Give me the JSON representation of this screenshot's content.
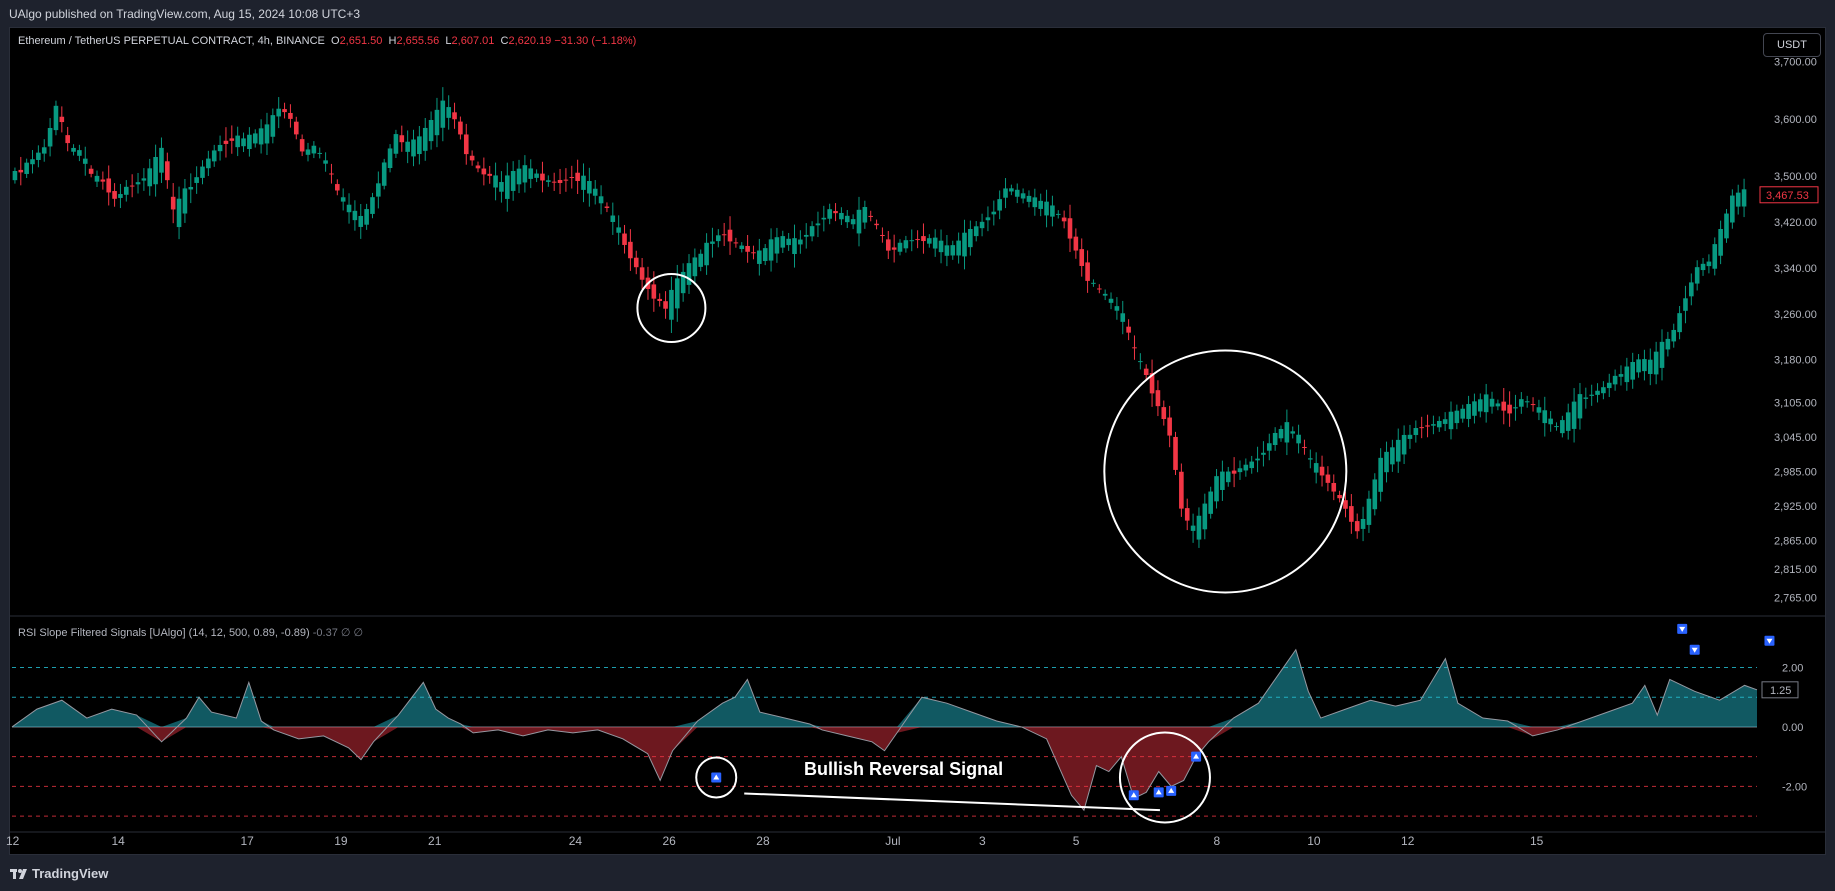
{
  "header": {
    "published": "UAlgo published on TradingView.com, Aug 15, 2024 10:08 UTC+3"
  },
  "main_legend": {
    "symbol": "Ethereum / TetherUS PERPETUAL CONTRACT, 4h, BINANCE",
    "o_label": "O",
    "o_value": "2,651.50",
    "h_label": "H",
    "h_value": "2,655.56",
    "l_label": "L",
    "l_value": "2,607.01",
    "c_label": "C",
    "c_value": "2,620.19",
    "change": "−31.30 (−1.18%)"
  },
  "currency_button": "USDT",
  "indicator_legend": {
    "name": "RSI Slope Filtered Signals [UAlgo] (14, 12, 500, 0.89, -0.89)",
    "value": "-0.37",
    "extra": "∅ ∅"
  },
  "annotation": {
    "text": "Bullish Reversal Signal"
  },
  "footer": {
    "logo_text": "TradingView",
    "logo_icon": "tradingview-logo-icon"
  },
  "colors": {
    "up": "#089981",
    "down": "#f23645",
    "background": "#000000",
    "signal": "#2962ff",
    "accent_teal": "#26c6da"
  },
  "chart_data": [
    {
      "type": "candlestick",
      "title": "",
      "ylim": [
        2740,
        3720
      ],
      "y_ticks": [
        "3,700.00",
        "3,600.00",
        "3,500.00",
        "3,420.00",
        "3,340.00",
        "3,260.00",
        "3,180.00",
        "3,105.00",
        "3,045.00",
        "2,985.00",
        "2,925.00",
        "2,865.00",
        "2,815.00",
        "2,765.00"
      ],
      "last_price_label": "3,467.53",
      "x_ticks": [
        "12",
        "14",
        "17",
        "19",
        "21",
        "24",
        "26",
        "28",
        "Jul",
        "3",
        "5",
        "8",
        "10",
        "12",
        "15"
      ],
      "close_path": [
        [
          0,
          3500
        ],
        [
          2,
          3510
        ],
        [
          4,
          3530
        ],
        [
          6,
          3550
        ],
        [
          8,
          3620
        ],
        [
          10,
          3550
        ],
        [
          12,
          3540
        ],
        [
          14,
          3500
        ],
        [
          16,
          3490
        ],
        [
          18,
          3460
        ],
        [
          20,
          3480
        ],
        [
          22,
          3490
        ],
        [
          24,
          3505
        ],
        [
          26,
          3540
        ],
        [
          28,
          3430
        ],
        [
          30,
          3470
        ],
        [
          32,
          3500
        ],
        [
          34,
          3530
        ],
        [
          36,
          3555
        ],
        [
          38,
          3565
        ],
        [
          40,
          3560
        ],
        [
          42,
          3570
        ],
        [
          44,
          3580
        ],
        [
          46,
          3620
        ],
        [
          48,
          3600
        ],
        [
          50,
          3540
        ],
        [
          52,
          3550
        ],
        [
          54,
          3520
        ],
        [
          56,
          3470
        ],
        [
          58,
          3440
        ],
        [
          60,
          3420
        ],
        [
          62,
          3460
        ],
        [
          64,
          3520
        ],
        [
          66,
          3570
        ],
        [
          68,
          3550
        ],
        [
          70,
          3560
        ],
        [
          72,
          3590
        ],
        [
          74,
          3620
        ],
        [
          76,
          3600
        ],
        [
          78,
          3540
        ],
        [
          80,
          3510
        ],
        [
          82,
          3500
        ],
        [
          84,
          3480
        ],
        [
          86,
          3500
        ],
        [
          88,
          3510
        ],
        [
          90,
          3500
        ],
        [
          92,
          3490
        ],
        [
          94,
          3490
        ],
        [
          96,
          3500
        ],
        [
          98,
          3490
        ],
        [
          100,
          3470
        ],
        [
          102,
          3440
        ],
        [
          104,
          3400
        ],
        [
          106,
          3360
        ],
        [
          108,
          3320
        ],
        [
          110,
          3290
        ],
        [
          112,
          3270
        ],
        [
          114,
          3310
        ],
        [
          116,
          3340
        ],
        [
          118,
          3360
        ],
        [
          120,
          3390
        ],
        [
          122,
          3400
        ],
        [
          124,
          3380
        ],
        [
          126,
          3370
        ],
        [
          128,
          3360
        ],
        [
          130,
          3380
        ],
        [
          132,
          3390
        ],
        [
          134,
          3380
        ],
        [
          136,
          3400
        ],
        [
          138,
          3420
        ],
        [
          140,
          3440
        ],
        [
          142,
          3430
        ],
        [
          144,
          3420
        ],
        [
          146,
          3440
        ],
        [
          148,
          3410
        ],
        [
          150,
          3370
        ],
        [
          152,
          3380
        ],
        [
          154,
          3390
        ],
        [
          156,
          3390
        ],
        [
          158,
          3385
        ],
        [
          160,
          3370
        ],
        [
          162,
          3380
        ],
        [
          164,
          3400
        ],
        [
          166,
          3420
        ],
        [
          168,
          3440
        ],
        [
          170,
          3480
        ],
        [
          172,
          3470
        ],
        [
          174,
          3460
        ],
        [
          176,
          3450
        ],
        [
          178,
          3440
        ],
        [
          180,
          3420
        ],
        [
          182,
          3370
        ],
        [
          184,
          3320
        ],
        [
          186,
          3300
        ],
        [
          188,
          3280
        ],
        [
          190,
          3250
        ],
        [
          192,
          3190
        ],
        [
          194,
          3150
        ],
        [
          196,
          3100
        ],
        [
          198,
          3050
        ],
        [
          200,
          2920
        ],
        [
          202,
          2880
        ],
        [
          204,
          2920
        ],
        [
          206,
          2970
        ],
        [
          208,
          2980
        ],
        [
          210,
          2990
        ],
        [
          212,
          3000
        ],
        [
          214,
          3020
        ],
        [
          216,
          3050
        ],
        [
          218,
          3060
        ],
        [
          220,
          3040
        ],
        [
          222,
          3000
        ],
        [
          224,
          2980
        ],
        [
          226,
          2950
        ],
        [
          228,
          2920
        ],
        [
          230,
          2880
        ],
        [
          232,
          2930
        ],
        [
          234,
          3000
        ],
        [
          236,
          3020
        ],
        [
          238,
          3040
        ],
        [
          240,
          3060
        ],
        [
          242,
          3065
        ],
        [
          244,
          3070
        ],
        [
          246,
          3080
        ],
        [
          248,
          3090
        ],
        [
          250,
          3100
        ],
        [
          252,
          3110
        ],
        [
          254,
          3100
        ],
        [
          256,
          3090
        ],
        [
          258,
          3110
        ],
        [
          260,
          3100
        ],
        [
          262,
          3080
        ],
        [
          264,
          3060
        ],
        [
          266,
          3080
        ],
        [
          268,
          3110
        ],
        [
          270,
          3120
        ],
        [
          272,
          3130
        ],
        [
          274,
          3150
        ],
        [
          276,
          3160
        ],
        [
          278,
          3175
        ],
        [
          280,
          3170
        ],
        [
          282,
          3200
        ],
        [
          284,
          3230
        ],
        [
          286,
          3290
        ],
        [
          288,
          3340
        ],
        [
          290,
          3350
        ],
        [
          292,
          3400
        ],
        [
          294,
          3460
        ],
        [
          296,
          3467.53
        ]
      ]
    },
    {
      "type": "area",
      "title": "",
      "ylim": [
        -3.3,
        3.6
      ],
      "y_ticks": [
        "2.00",
        "0.00",
        "-2.00"
      ],
      "last_value_label": "1.25",
      "levels": [
        2.0,
        1.0,
        -1.0,
        -2.0,
        -3.0
      ],
      "values": [
        [
          0,
          0.0
        ],
        [
          4,
          0.6
        ],
        [
          8,
          0.9
        ],
        [
          12,
          0.3
        ],
        [
          16,
          0.6
        ],
        [
          20,
          0.4
        ],
        [
          24,
          -0.5
        ],
        [
          28,
          0.3
        ],
        [
          30,
          1.0
        ],
        [
          32,
          0.5
        ],
        [
          36,
          0.3
        ],
        [
          38,
          1.5
        ],
        [
          40,
          0.2
        ],
        [
          42,
          -0.1
        ],
        [
          46,
          -0.4
        ],
        [
          50,
          -0.3
        ],
        [
          54,
          -0.7
        ],
        [
          56,
          -1.1
        ],
        [
          58,
          -0.5
        ],
        [
          62,
          0.4
        ],
        [
          66,
          1.5
        ],
        [
          68,
          0.6
        ],
        [
          70,
          0.3
        ],
        [
          72,
          0.1
        ],
        [
          74,
          -0.2
        ],
        [
          78,
          -0.1
        ],
        [
          82,
          -0.3
        ],
        [
          86,
          -0.1
        ],
        [
          90,
          -0.2
        ],
        [
          94,
          -0.1
        ],
        [
          98,
          -0.4
        ],
        [
          102,
          -0.9
        ],
        [
          104,
          -1.8
        ],
        [
          106,
          -0.8
        ],
        [
          110,
          0.2
        ],
        [
          114,
          0.8
        ],
        [
          116,
          1.0
        ],
        [
          118,
          1.6
        ],
        [
          120,
          0.5
        ],
        [
          124,
          0.3
        ],
        [
          128,
          0.1
        ],
        [
          130,
          -0.1
        ],
        [
          134,
          -0.3
        ],
        [
          138,
          -0.5
        ],
        [
          140,
          -0.8
        ],
        [
          142,
          -0.2
        ],
        [
          146,
          1.0
        ],
        [
          150,
          0.8
        ],
        [
          154,
          0.5
        ],
        [
          158,
          0.2
        ],
        [
          162,
          0.0
        ],
        [
          166,
          -0.4
        ],
        [
          170,
          -2.3
        ],
        [
          172,
          -2.8
        ],
        [
          174,
          -1.3
        ],
        [
          176,
          -1.5
        ],
        [
          178,
          -1.0
        ],
        [
          180,
          -2.4
        ],
        [
          182,
          -2.2
        ],
        [
          184,
          -1.5
        ],
        [
          186,
          -2.0
        ],
        [
          188,
          -1.8
        ],
        [
          190,
          -1.0
        ],
        [
          192,
          -0.5
        ],
        [
          196,
          0.3
        ],
        [
          200,
          0.8
        ],
        [
          204,
          2.0
        ],
        [
          206,
          2.6
        ],
        [
          208,
          1.2
        ],
        [
          210,
          0.3
        ],
        [
          214,
          0.6
        ],
        [
          218,
          0.9
        ],
        [
          222,
          0.7
        ],
        [
          226,
          0.9
        ],
        [
          230,
          2.3
        ],
        [
          232,
          0.8
        ],
        [
          236,
          0.3
        ],
        [
          240,
          0.2
        ],
        [
          244,
          -0.3
        ],
        [
          248,
          -0.1
        ],
        [
          252,
          0.2
        ],
        [
          256,
          0.5
        ],
        [
          260,
          0.8
        ],
        [
          262,
          1.4
        ],
        [
          264,
          0.4
        ],
        [
          266,
          1.6
        ],
        [
          270,
          1.2
        ],
        [
          274,
          0.9
        ],
        [
          278,
          1.4
        ],
        [
          280,
          1.25
        ]
      ]
    }
  ]
}
